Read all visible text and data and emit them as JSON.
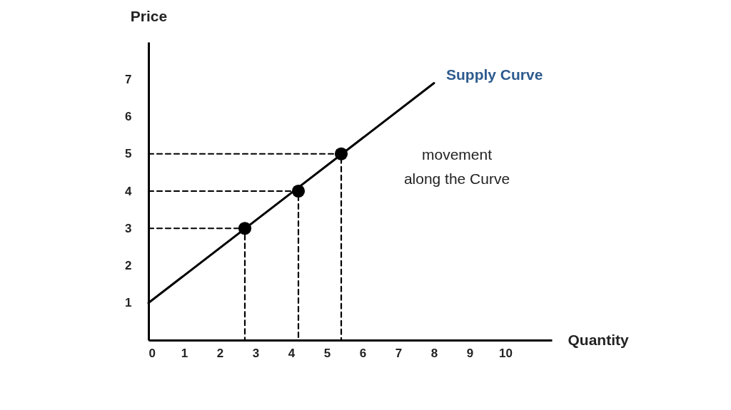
{
  "chart_data": {
    "type": "line",
    "xlabel": "Quantity",
    "ylabel": "Price",
    "xlim": [
      0,
      11.3
    ],
    "ylim": [
      0,
      8
    ],
    "xticks": [
      0,
      1,
      2,
      3,
      4,
      5,
      6,
      7,
      8,
      9,
      10
    ],
    "yticks": [
      1,
      2,
      3,
      4,
      5,
      6,
      7
    ],
    "annotations": [
      "Supply Curve",
      "movement along the Curve"
    ],
    "series": [
      {
        "color": "#000000",
        "x": [
          0,
          8
        ],
        "values": [
          1,
          6.9
        ],
        "line_style": "solid"
      },
      {
        "type": "line",
        "color": "#000000",
        "x": [
          0,
          2.7,
          2.7
        ],
        "values": [
          3,
          3,
          0
        ],
        "line_style": "dashed"
      },
      {
        "type": "line",
        "color": "#000000",
        "x": [
          0,
          4.2,
          4.2
        ],
        "values": [
          4,
          4,
          0
        ],
        "line_style": "dashed"
      },
      {
        "type": "line",
        "color": "#000000",
        "x": [
          0,
          5.4,
          5.4
        ],
        "values": [
          5,
          5,
          0
        ],
        "line_style": "dashed"
      },
      {
        "type": "scatter",
        "color": "#000000",
        "x": [
          2.7,
          4.2,
          5.4
        ],
        "values": [
          3,
          4,
          5
        ],
        "marker": "circle"
      }
    ]
  }
}
